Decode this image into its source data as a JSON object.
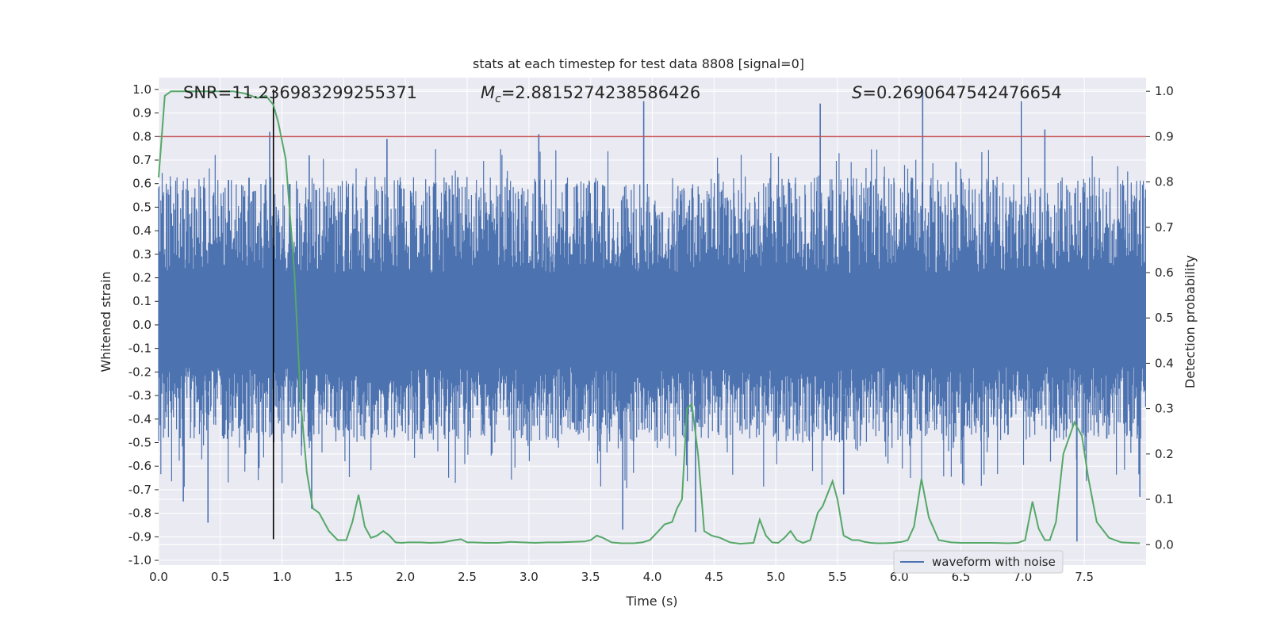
{
  "chart_data": {
    "type": "line",
    "title": "stats at each timestep for test data 8808 [signal=0]",
    "xlabel": "Time (s)",
    "ylabel": "Whitened strain",
    "y2label": "Detection probability",
    "xlim": [
      0.0,
      8.0
    ],
    "ylim": [
      -1.02,
      1.05
    ],
    "y2lim": [
      -0.045,
      1.03
    ],
    "xticks": [
      "0.0",
      "0.5",
      "1.0",
      "1.5",
      "2.0",
      "2.5",
      "3.0",
      "3.5",
      "4.0",
      "4.5",
      "5.0",
      "5.5",
      "6.0",
      "6.5",
      "7.0",
      "7.5"
    ],
    "yticks": [
      "-1.0",
      "-0.9",
      "-0.8",
      "-0.7",
      "-0.6",
      "-0.5",
      "-0.4",
      "-0.3",
      "-0.2",
      "-0.1",
      "0.0",
      "0.1",
      "0.2",
      "0.3",
      "0.4",
      "0.5",
      "0.6",
      "0.7",
      "0.8",
      "0.9",
      "1.0"
    ],
    "y2ticks": [
      "0.0",
      "0.1",
      "0.2",
      "0.3",
      "0.4",
      "0.5",
      "0.6",
      "0.7",
      "0.8",
      "0.9",
      "1.0"
    ],
    "grid": true,
    "legend": {
      "placement": "lower-right",
      "entries": [
        "waveform with noise"
      ]
    },
    "annotations": {
      "snr": "SNR=11.236983299255371",
      "mc_symbol": "M",
      "mc_sub": "c",
      "mc_value": "=2.8815274238586426",
      "s_symbol": "S",
      "s_value": "=0.2690647542476654"
    },
    "threshold_line": {
      "value": 0.9,
      "axis": "right",
      "color": "#c44e52"
    },
    "marker_line": {
      "x": 0.93,
      "y_range": [
        -0.91,
        1.0
      ],
      "color": "#000000"
    },
    "colors": {
      "waveform": "#4c72b0",
      "probability": "#55a868",
      "plot_bg": "#eaeaf2",
      "grid": "#ffffff"
    },
    "series": [
      {
        "name": "waveform with noise",
        "axis": "left",
        "band_typical": [
          -0.38,
          0.55
        ],
        "peaks": [
          {
            "x": 0.9,
            "y": 0.82
          },
          {
            "x": 1.22,
            "y": 0.72
          },
          {
            "x": 1.85,
            "y": 0.79
          },
          {
            "x": 3.08,
            "y": 0.81
          },
          {
            "x": 3.93,
            "y": 0.95
          },
          {
            "x": 5.36,
            "y": 0.94
          },
          {
            "x": 6.19,
            "y": 1.0
          },
          {
            "x": 6.99,
            "y": 0.95
          },
          {
            "x": 7.18,
            "y": 0.83
          }
        ],
        "troughs": [
          {
            "x": 0.2,
            "y": -0.75
          },
          {
            "x": 0.4,
            "y": -0.84
          },
          {
            "x": 1.24,
            "y": -0.78
          },
          {
            "x": 3.76,
            "y": -0.87
          },
          {
            "x": 4.35,
            "y": -0.88
          },
          {
            "x": 5.55,
            "y": -0.72
          },
          {
            "x": 7.44,
            "y": -0.92
          },
          {
            "x": 7.95,
            "y": -0.73
          }
        ]
      },
      {
        "name": "",
        "axis": "right",
        "x": [
          0.0,
          0.05,
          0.1,
          0.2,
          0.3,
          0.4,
          0.5,
          0.6,
          0.7,
          0.8,
          0.87,
          0.93,
          0.97,
          1.03,
          1.1,
          1.15,
          1.2,
          1.25,
          1.3,
          1.38,
          1.45,
          1.52,
          1.57,
          1.62,
          1.67,
          1.72,
          1.77,
          1.82,
          1.87,
          1.92,
          1.97,
          2.02,
          2.07,
          2.12,
          2.2,
          2.3,
          2.4,
          2.45,
          2.5,
          2.55,
          2.65,
          2.75,
          2.85,
          2.95,
          3.05,
          3.15,
          3.25,
          3.35,
          3.45,
          3.5,
          3.55,
          3.6,
          3.67,
          3.75,
          3.85,
          3.92,
          3.98,
          4.05,
          4.1,
          4.16,
          4.2,
          4.24,
          4.28,
          4.32,
          4.37,
          4.42,
          4.48,
          4.55,
          4.63,
          4.71,
          4.77,
          4.82,
          4.87,
          4.92,
          4.97,
          5.02,
          5.07,
          5.12,
          5.17,
          5.22,
          5.28,
          5.34,
          5.38,
          5.46,
          5.5,
          5.55,
          5.62,
          5.67,
          5.72,
          5.77,
          5.82,
          5.88,
          5.95,
          6.02,
          6.07,
          6.12,
          6.18,
          6.24,
          6.32,
          6.42,
          6.5,
          6.62,
          6.75,
          6.88,
          6.96,
          7.02,
          7.08,
          7.13,
          7.18,
          7.22,
          7.27,
          7.33,
          7.42,
          7.48,
          7.53,
          7.6,
          7.7,
          7.8,
          7.95
        ],
        "values": [
          0.81,
          0.99,
          1.0,
          1.0,
          1.0,
          1.0,
          1.0,
          1.0,
          0.995,
          0.985,
          0.99,
          0.97,
          0.93,
          0.85,
          0.6,
          0.32,
          0.16,
          0.08,
          0.07,
          0.03,
          0.01,
          0.01,
          0.05,
          0.11,
          0.04,
          0.015,
          0.02,
          0.03,
          0.02,
          0.005,
          0.004,
          0.005,
          0.005,
          0.005,
          0.004,
          0.005,
          0.01,
          0.012,
          0.005,
          0.005,
          0.004,
          0.004,
          0.006,
          0.005,
          0.004,
          0.005,
          0.005,
          0.006,
          0.007,
          0.01,
          0.02,
          0.015,
          0.005,
          0.003,
          0.003,
          0.005,
          0.01,
          0.03,
          0.045,
          0.05,
          0.08,
          0.1,
          0.3,
          0.31,
          0.2,
          0.03,
          0.02,
          0.015,
          0.005,
          0.002,
          0.003,
          0.004,
          0.055,
          0.02,
          0.005,
          0.004,
          0.015,
          0.03,
          0.01,
          0.004,
          0.01,
          0.07,
          0.085,
          0.14,
          0.1,
          0.02,
          0.01,
          0.01,
          0.006,
          0.004,
          0.003,
          0.003,
          0.004,
          0.006,
          0.01,
          0.04,
          0.145,
          0.06,
          0.01,
          0.005,
          0.004,
          0.004,
          0.004,
          0.003,
          0.004,
          0.01,
          0.095,
          0.035,
          0.01,
          0.01,
          0.05,
          0.2,
          0.27,
          0.24,
          0.15,
          0.05,
          0.015,
          0.005,
          0.003
        ]
      }
    ]
  }
}
